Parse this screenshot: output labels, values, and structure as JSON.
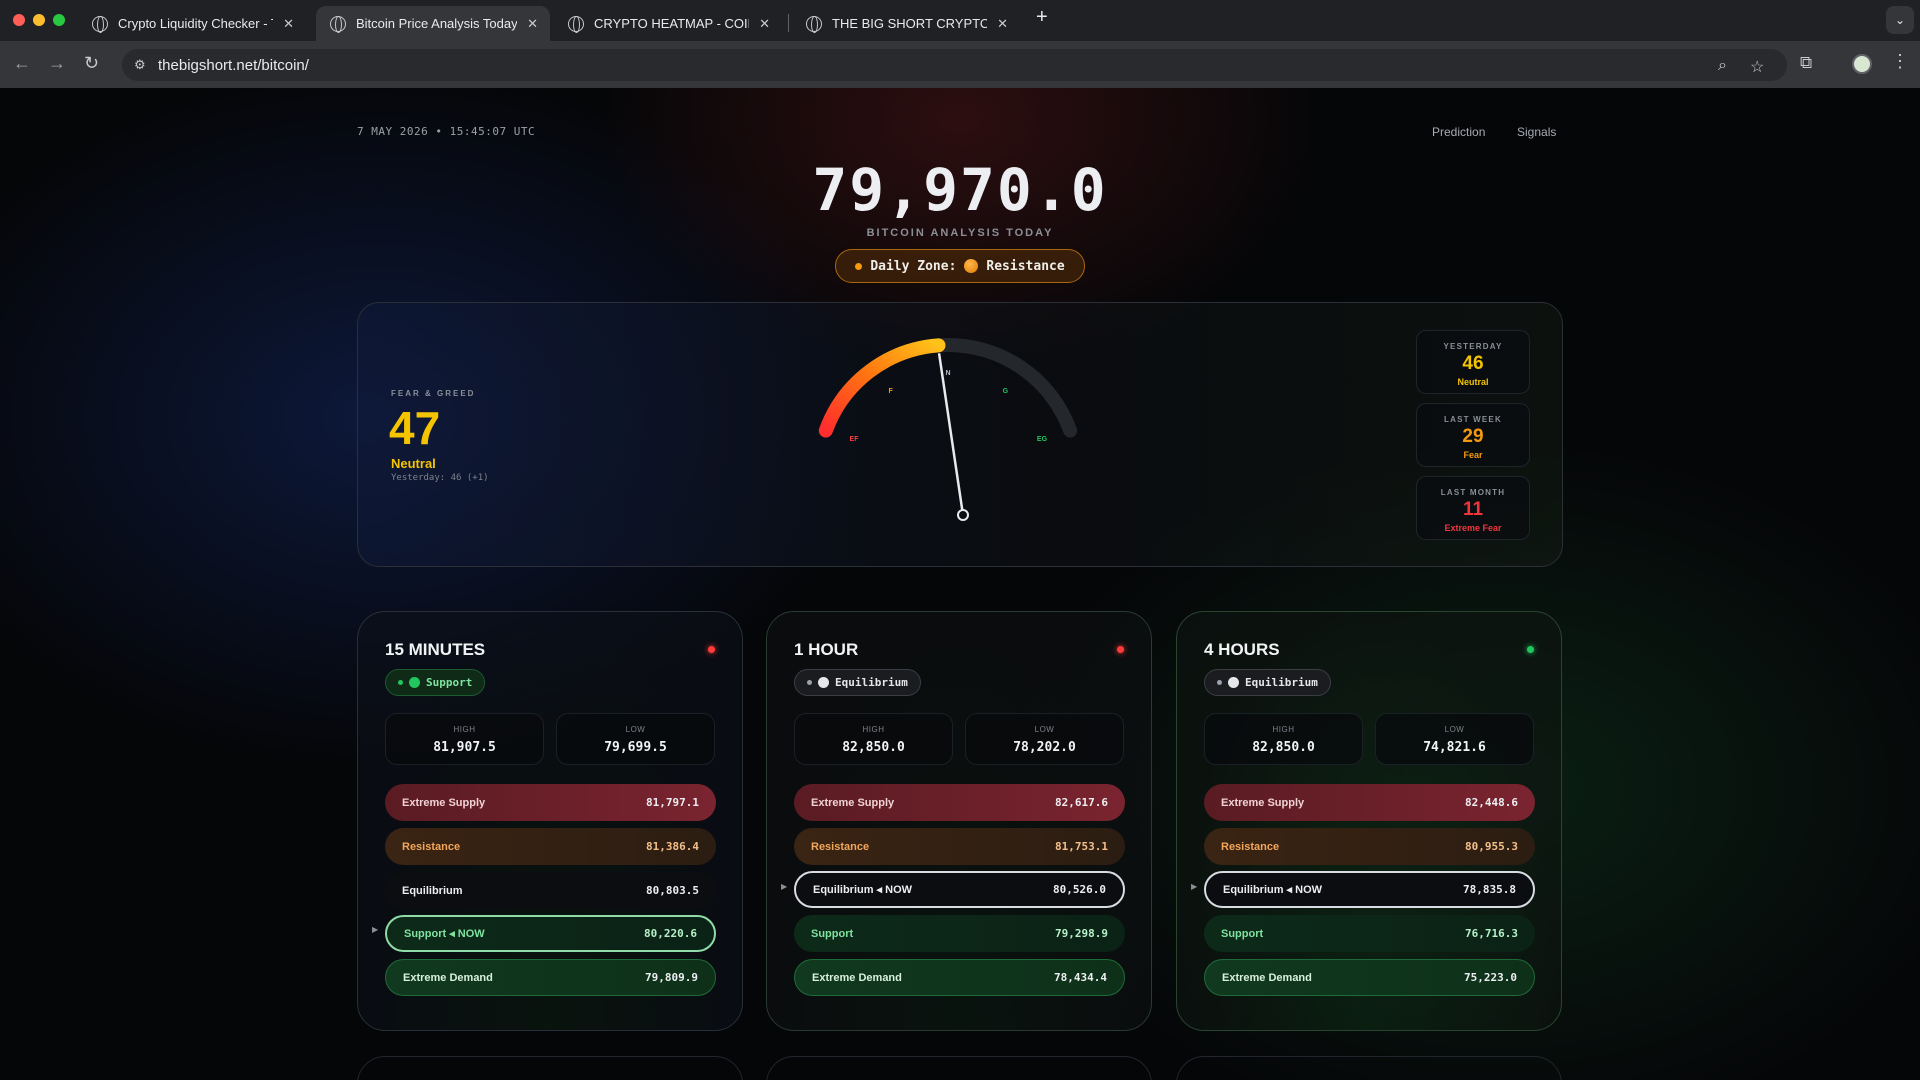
{
  "browser": {
    "tabs": [
      {
        "label": "Crypto Liquidity Checker - Th"
      },
      {
        "label": "Bitcoin Price Analysis Today |"
      },
      {
        "label": "CRYPTO HEATMAP - COINLIS"
      },
      {
        "label": "THE BIG SHORT CRYPTO"
      }
    ],
    "url": "thebigshort.net/bitcoin/",
    "colors": {
      "close": "#ff5f57",
      "minimize": "#febc2e",
      "zoom": "#28c840"
    }
  },
  "header": {
    "datetime": "7 MAY 2026 • 15:45:07 UTC",
    "nav": [
      "Prediction",
      "Signals"
    ],
    "price": "79,970.0",
    "subtitle": "BITCOIN ANALYSIS TODAY",
    "zone_label": "Daily Zone:",
    "zone_value": "Resistance"
  },
  "fear_greed": {
    "label": "FEAR & GREED",
    "value": "47",
    "classification": "Neutral",
    "yesterday_text": "Yesterday: 46 (+1)",
    "gauge_value": 47,
    "gauge_ticks": [
      "EF",
      "F",
      "N",
      "G",
      "EG"
    ],
    "history": [
      {
        "label": "YESTERDAY",
        "value": "46",
        "class": "Neutral",
        "color": "#f5c400"
      },
      {
        "label": "LAST WEEK",
        "value": "29",
        "class": "Fear",
        "color": "#f59a10"
      },
      {
        "label": "LAST MONTH",
        "value": "11",
        "class": "Extreme Fear",
        "color": "#f0353d"
      }
    ]
  },
  "timeframes": [
    {
      "title": "15 MINUTES",
      "indicator_color": "#ff3b3b",
      "badge": "Support",
      "badge_color": "#22c55e",
      "high_label": "HIGH",
      "high": "81,907.5",
      "low_label": "LOW",
      "low": "79,699.5",
      "levels": [
        {
          "name": "Extreme Supply",
          "value": "81,797.1",
          "kind": "es",
          "now": false
        },
        {
          "name": "Resistance",
          "value": "81,386.4",
          "kind": "r",
          "now": false
        },
        {
          "name": "Equilibrium",
          "value": "80,803.5",
          "kind": "eq",
          "now": false
        },
        {
          "name": "Support ◂ NOW",
          "value": "80,220.6",
          "kind": "s",
          "now": true
        },
        {
          "name": "Extreme Demand",
          "value": "79,809.9",
          "kind": "ed",
          "now": false
        }
      ]
    },
    {
      "title": "1 HOUR",
      "indicator_color": "#ff3b3b",
      "badge": "Equilibrium",
      "badge_color": "#e5e7eb",
      "high_label": "HIGH",
      "high": "82,850.0",
      "low_label": "LOW",
      "low": "78,202.0",
      "levels": [
        {
          "name": "Extreme Supply",
          "value": "82,617.6",
          "kind": "es",
          "now": false
        },
        {
          "name": "Resistance",
          "value": "81,753.1",
          "kind": "r",
          "now": false
        },
        {
          "name": "Equilibrium ◂ NOW",
          "value": "80,526.0",
          "kind": "eq",
          "now": true
        },
        {
          "name": "Support",
          "value": "79,298.9",
          "kind": "s",
          "now": false
        },
        {
          "name": "Extreme Demand",
          "value": "78,434.4",
          "kind": "ed",
          "now": false
        }
      ]
    },
    {
      "title": "4 HOURS",
      "indicator_color": "#22c55e",
      "badge": "Equilibrium",
      "badge_color": "#e5e7eb",
      "high_label": "HIGH",
      "high": "82,850.0",
      "low_label": "LOW",
      "low": "74,821.6",
      "levels": [
        {
          "name": "Extreme Supply",
          "value": "82,448.6",
          "kind": "es",
          "now": false
        },
        {
          "name": "Resistance",
          "value": "80,955.3",
          "kind": "r",
          "now": false
        },
        {
          "name": "Equilibrium ◂ NOW",
          "value": "78,835.8",
          "kind": "eq",
          "now": true
        },
        {
          "name": "Support",
          "value": "76,716.3",
          "kind": "s",
          "now": false
        },
        {
          "name": "Extreme Demand",
          "value": "75,223.0",
          "kind": "ed",
          "now": false
        }
      ]
    }
  ]
}
